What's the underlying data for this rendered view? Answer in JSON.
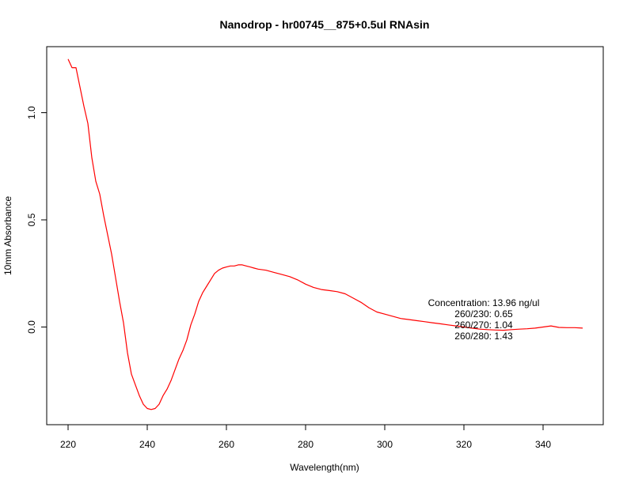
{
  "chart_data": {
    "type": "line",
    "title": "Nanodrop - hr00745__875+0.5ul RNAsin",
    "xlabel": "Wavelength(nm)",
    "ylabel": "10mm Absorbance",
    "xlim": [
      220,
      350
    ],
    "ylim": [
      -0.45,
      1.3
    ],
    "x_ticks": [
      220,
      240,
      260,
      280,
      300,
      320,
      340
    ],
    "y_ticks": [
      0.0,
      0.5,
      1.0
    ],
    "x_tick_labels": [
      "220",
      "240",
      "260",
      "280",
      "300",
      "320",
      "340"
    ],
    "y_tick_labels": [
      "0.0",
      "0.5",
      "1.0"
    ],
    "grid": false,
    "series": [
      {
        "color": "#ff0000",
        "x": [
          220,
          221,
          222,
          223,
          224,
          225,
          226,
          227,
          228,
          229,
          230,
          231,
          232,
          233,
          234,
          235,
          236,
          237,
          238,
          239,
          240,
          241,
          242,
          243,
          244,
          245,
          246,
          247,
          248,
          249,
          250,
          251,
          252,
          253,
          254,
          255,
          256,
          257,
          258,
          259,
          260,
          261,
          262,
          263,
          264,
          265,
          266,
          267,
          268,
          270,
          272,
          274,
          276,
          278,
          280,
          282,
          284,
          286,
          288,
          290,
          292,
          294,
          296,
          298,
          300,
          302,
          304,
          306,
          308,
          310,
          312,
          314,
          316,
          318,
          320,
          322,
          324,
          326,
          328,
          330,
          332,
          334,
          336,
          338,
          340,
          342,
          344,
          346,
          348,
          350
        ],
        "y": [
          1.25,
          1.21,
          1.21,
          1.12,
          1.03,
          0.95,
          0.79,
          0.68,
          0.62,
          0.52,
          0.43,
          0.34,
          0.23,
          0.12,
          0.02,
          -0.12,
          -0.22,
          -0.27,
          -0.32,
          -0.36,
          -0.38,
          -0.385,
          -0.38,
          -0.36,
          -0.32,
          -0.29,
          -0.25,
          -0.2,
          -0.15,
          -0.11,
          -0.06,
          0.01,
          0.06,
          0.12,
          0.16,
          0.19,
          0.22,
          0.25,
          0.265,
          0.275,
          0.28,
          0.285,
          0.285,
          0.29,
          0.29,
          0.285,
          0.28,
          0.275,
          0.27,
          0.265,
          0.255,
          0.245,
          0.235,
          0.22,
          0.2,
          0.185,
          0.175,
          0.17,
          0.165,
          0.155,
          0.135,
          0.115,
          0.09,
          0.07,
          0.06,
          0.05,
          0.04,
          0.035,
          0.03,
          0.025,
          0.02,
          0.015,
          0.01,
          0.005,
          0.0,
          -0.005,
          -0.01,
          -0.012,
          -0.014,
          -0.015,
          -0.012,
          -0.01,
          -0.008,
          -0.005,
          0.0,
          0.005,
          -0.002,
          -0.003,
          -0.003,
          -0.005
        ]
      }
    ],
    "annotations": [
      "Concentration: 13.96 ng/ul",
      "260/230: 0.65",
      "260/270: 1.04",
      "260/280: 1.43"
    ]
  }
}
